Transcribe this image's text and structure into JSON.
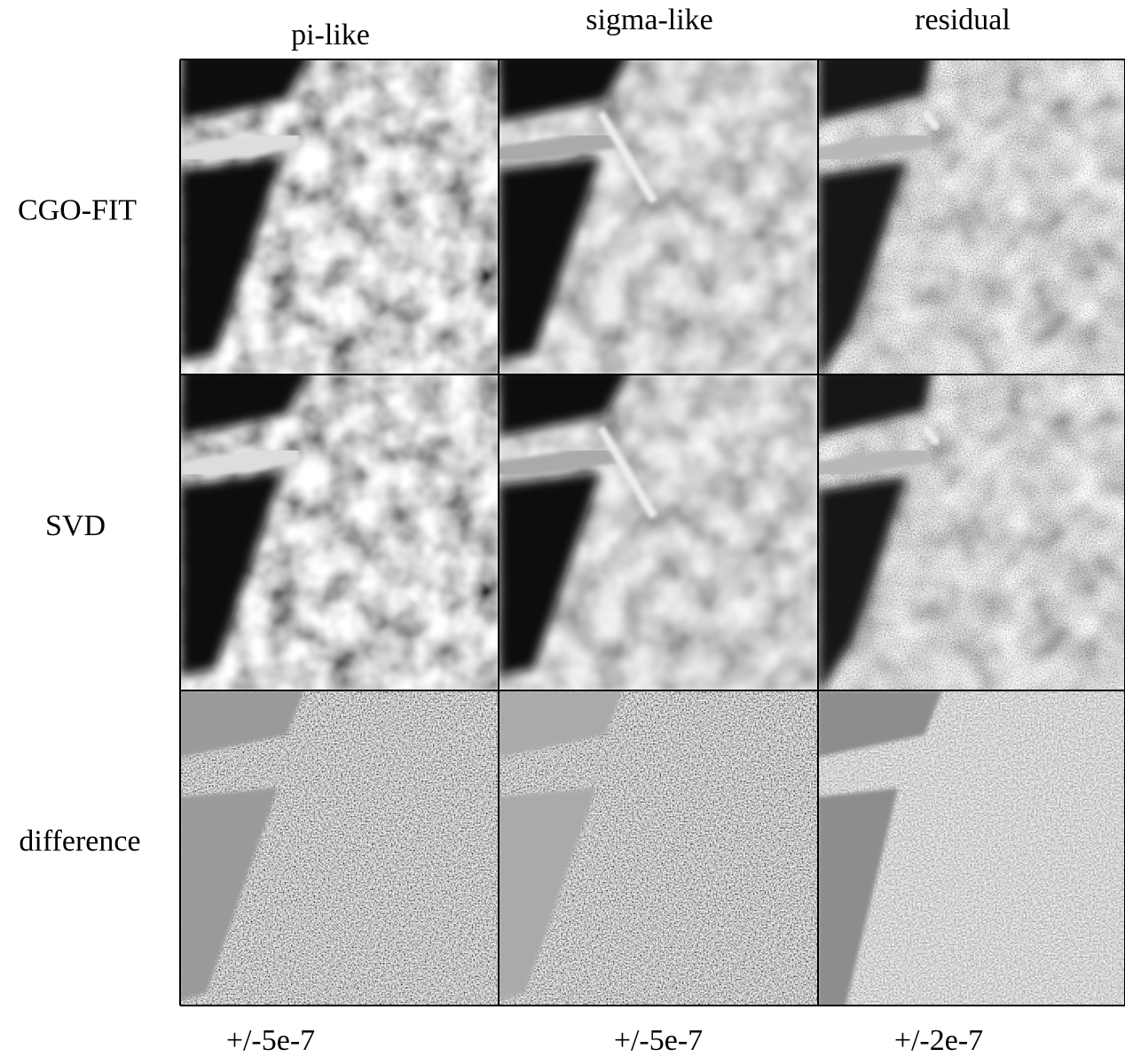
{
  "columns": [
    "pi-like",
    "sigma-like",
    "residual"
  ],
  "rows": [
    "CGO-FIT",
    "SVD",
    "difference"
  ],
  "scales": [
    "+/-5e-7",
    "+/-5e-7",
    "+/-2e-7"
  ]
}
